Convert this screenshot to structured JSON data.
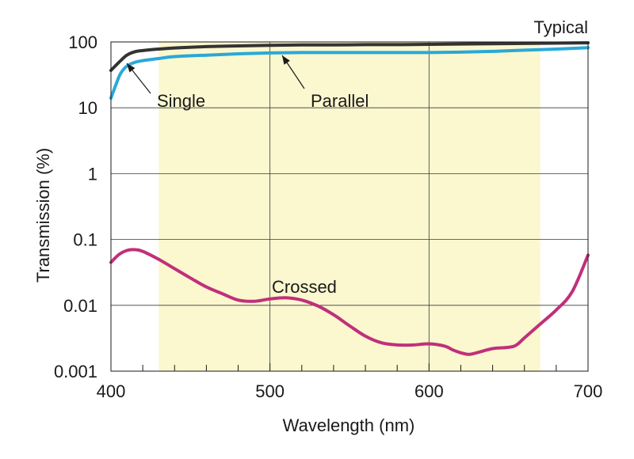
{
  "chart_data": {
    "type": "line",
    "title": "",
    "xlabel": "Wavelength (nm)",
    "ylabel": "Transmission (%)",
    "x_scale": "linear",
    "y_scale": "log",
    "xlim": [
      400,
      700
    ],
    "ylim": [
      0.001,
      100
    ],
    "x_ticks": [
      400,
      500,
      600,
      700
    ],
    "x_tick_labels": [
      "400",
      "500",
      "600",
      "700"
    ],
    "y_ticks": [
      0.001,
      0.01,
      0.1,
      1,
      10,
      100
    ],
    "y_tick_labels": [
      "0.001",
      "0.01",
      "0.1",
      "1",
      "10",
      "100"
    ],
    "grid": true,
    "highlight_band": {
      "x_range": [
        430,
        670
      ],
      "color": "#fbf7cf"
    },
    "series": [
      {
        "name": "Single",
        "color": "#333333",
        "x": [
          400,
          405,
          410,
          415,
          420,
          430,
          440,
          460,
          480,
          500,
          520,
          540,
          560,
          580,
          600,
          620,
          640,
          660,
          680,
          700
        ],
        "y": [
          37,
          49,
          63,
          71,
          74,
          78,
          81,
          85,
          87,
          89,
          90,
          90,
          91,
          91,
          92,
          93,
          94,
          95,
          96,
          97
        ]
      },
      {
        "name": "Parallel",
        "color": "#2aa8d8",
        "x": [
          400,
          403,
          406,
          410,
          415,
          420,
          430,
          440,
          460,
          480,
          500,
          520,
          540,
          560,
          580,
          600,
          620,
          640,
          660,
          680,
          700
        ],
        "y": [
          14,
          22,
          33,
          43,
          49,
          52,
          56,
          60,
          63,
          66,
          68,
          69,
          69,
          69,
          69,
          69,
          70,
          72,
          75,
          78,
          82
        ]
      },
      {
        "name": "Crossed",
        "color": "#c0307a",
        "x": [
          400,
          405,
          410,
          415,
          420,
          430,
          440,
          450,
          460,
          470,
          480,
          490,
          500,
          510,
          520,
          530,
          540,
          550,
          560,
          570,
          580,
          590,
          600,
          610,
          615,
          620,
          625,
          630,
          640,
          650,
          655,
          660,
          670,
          680,
          690,
          700
        ],
        "y": [
          0.045,
          0.059,
          0.068,
          0.07,
          0.066,
          0.05,
          0.036,
          0.026,
          0.019,
          0.015,
          0.012,
          0.0115,
          0.0125,
          0.013,
          0.012,
          0.0098,
          0.0072,
          0.0049,
          0.0034,
          0.0027,
          0.0025,
          0.0025,
          0.0026,
          0.0024,
          0.0021,
          0.0019,
          0.0018,
          0.0019,
          0.0022,
          0.0023,
          0.0025,
          0.0032,
          0.0052,
          0.0085,
          0.016,
          0.058
        ]
      }
    ],
    "annotations": [
      {
        "text": "Typical"
      },
      {
        "text": "Single",
        "points_to_series": "Single"
      },
      {
        "text": "Parallel",
        "points_to_series": "Parallel"
      },
      {
        "text": "Crossed",
        "points_to_series": "Crossed"
      }
    ]
  }
}
